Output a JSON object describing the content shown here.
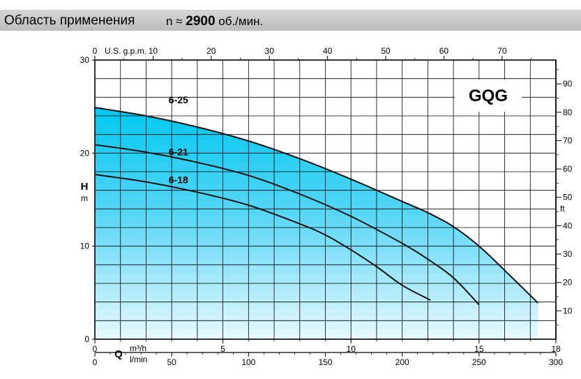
{
  "header": {
    "title": "Область применения",
    "speed_prefix": "n ≈",
    "speed_value": "2900",
    "speed_unit": "об./мин."
  },
  "chart_data": {
    "type": "line",
    "title": "",
    "series_family_label": "GQG",
    "x_axis_bottom": {
      "label": "Q",
      "unit_top": "m³/h",
      "unit_bottom": "l/min",
      "range": [
        0,
        18
      ],
      "ticks": [
        0,
        5,
        10,
        15,
        18
      ]
    },
    "x_axis_lmin": {
      "unit": "l/min",
      "range": [
        0,
        300
      ],
      "ticks": [
        0,
        50,
        100,
        150,
        200,
        250,
        300
      ]
    },
    "x_axis_top": {
      "unit": "U.S. g.p.m.",
      "range": [
        0,
        79.25
      ],
      "ticks": [
        0,
        10,
        20,
        30,
        40,
        50,
        60,
        70
      ]
    },
    "y_axis_left": {
      "label": "H",
      "unit": "m",
      "range": [
        0,
        30
      ],
      "ticks": [
        0,
        10,
        20,
        30
      ]
    },
    "y_axis_right": {
      "unit": "ft",
      "range": [
        0,
        98.4
      ],
      "ticks": [
        10,
        20,
        30,
        40,
        50,
        60,
        70,
        80,
        90
      ]
    },
    "grid": true,
    "fill_envelope": true,
    "series": [
      {
        "name": "6-25",
        "x": [
          0,
          2,
          4,
          6,
          8,
          10,
          12,
          13,
          14,
          15,
          16,
          17.3
        ],
        "y": [
          24.9,
          24.0,
          22.8,
          21.3,
          19.4,
          17.2,
          14.8,
          13.6,
          12.1,
          10.0,
          7.4,
          3.9
        ]
      },
      {
        "name": "6-21",
        "x": [
          0,
          2,
          4,
          6,
          8,
          10,
          12,
          13,
          14,
          15
        ],
        "y": [
          20.9,
          20.1,
          19.0,
          17.6,
          15.6,
          13.2,
          10.3,
          8.6,
          6.6,
          3.7
        ]
      },
      {
        "name": "6-18",
        "x": [
          0,
          2,
          4,
          6,
          8,
          9,
          10,
          11,
          12,
          13.1
        ],
        "y": [
          17.7,
          16.9,
          15.8,
          14.4,
          12.4,
          11.2,
          9.6,
          7.8,
          5.8,
          4.2
        ]
      }
    ]
  }
}
